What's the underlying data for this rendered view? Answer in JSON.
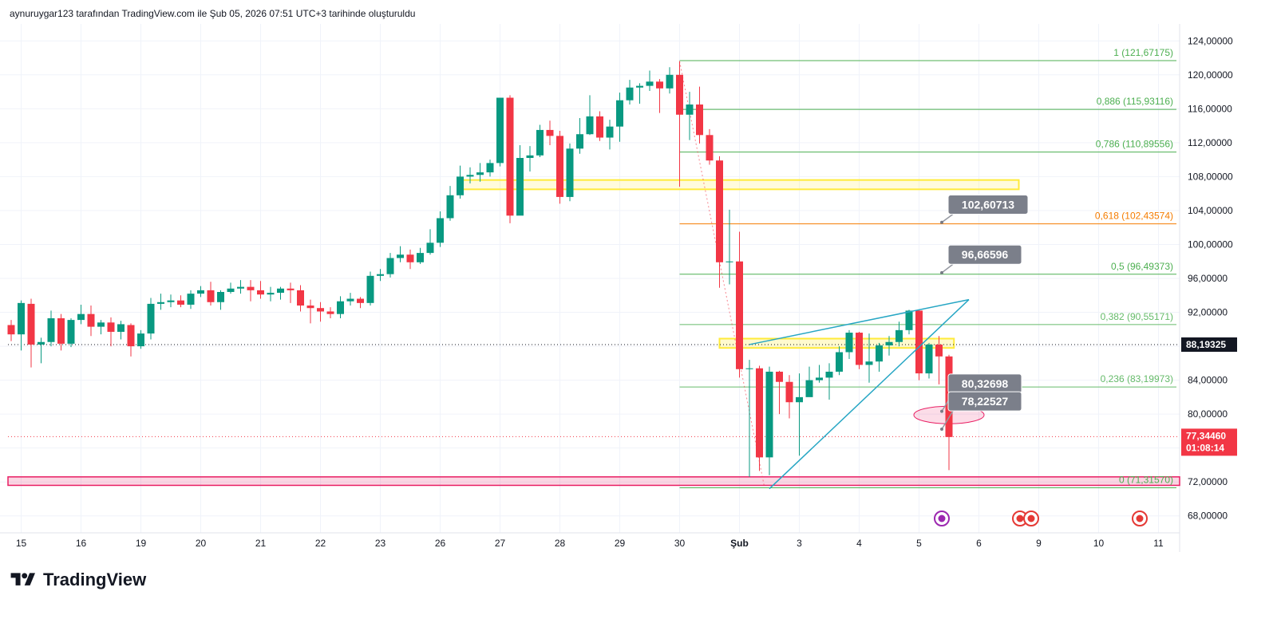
{
  "header": {
    "text": "aynuruygar123 tarafından TradingView.com ile Şub 05, 2026 07:51 UTC+3 tarihinde oluşturuldu"
  },
  "logo": {
    "text": "TradingView",
    "icon": "tradingview-logo-icon"
  },
  "colors": {
    "up": "#089981",
    "down": "#f23645",
    "grid": "#f0f3fa",
    "fib_green": "#4caf50",
    "fib_orange": "#f57c00",
    "fib_lightgreen": "#66bb6a",
    "trend": "#26a6c4",
    "zone_yellow": "#ffeb3b",
    "zone_pink": "#e91e63",
    "callout": "#7b7f8a",
    "price_tag": "#131722",
    "last_tag": "#f23645"
  },
  "chart_data": {
    "type": "candlestick",
    "ylim": [
      66,
      126
    ],
    "yticks": [
      "124,00000",
      "120,00000",
      "116,00000",
      "112,00000",
      "108,00000",
      "104,00000",
      "100,00000",
      "96,00000",
      "92,00000",
      "88,00000",
      "84,00000",
      "80,00000",
      "76,00000",
      "72,00000",
      "68,00000"
    ],
    "x_labels": [
      {
        "label": "15",
        "i": 1
      },
      {
        "label": "16",
        "i": 7
      },
      {
        "label": "19",
        "i": 13
      },
      {
        "label": "20",
        "i": 19
      },
      {
        "label": "21",
        "i": 25
      },
      {
        "label": "22",
        "i": 31
      },
      {
        "label": "23",
        "i": 37
      },
      {
        "label": "26",
        "i": 43
      },
      {
        "label": "27",
        "i": 49
      },
      {
        "label": "28",
        "i": 55
      },
      {
        "label": "29",
        "i": 61
      },
      {
        "label": "30",
        "i": 67
      },
      {
        "label": "Şub",
        "i": 73,
        "bold": true
      },
      {
        "label": "3",
        "i": 79
      },
      {
        "label": "4",
        "i": 85
      },
      {
        "label": "5",
        "i": 91
      },
      {
        "label": "6",
        "i": 97
      },
      {
        "label": "9",
        "i": 103
      },
      {
        "label": "11",
        "i": 115
      },
      {
        "label": "10",
        "i": 109
      }
    ],
    "candles": [
      [
        90.5,
        89.4,
        91.1,
        88.6
      ],
      [
        89.4,
        93.1,
        93.4,
        87.5
      ],
      [
        93.0,
        88.2,
        93.6,
        85.5
      ],
      [
        88.2,
        88.5,
        89.0,
        86.0
      ],
      [
        88.5,
        91.3,
        92.2,
        88.0
      ],
      [
        91.3,
        88.3,
        91.8,
        87.5
      ],
      [
        88.3,
        91.1,
        91.3,
        87.9
      ],
      [
        91.1,
        91.8,
        92.9,
        90.6
      ],
      [
        91.8,
        90.3,
        92.8,
        89.2
      ],
      [
        90.3,
        90.8,
        91.1,
        89.4
      ],
      [
        90.8,
        89.7,
        91.4,
        88.0
      ],
      [
        89.7,
        90.6,
        91.0,
        88.8
      ],
      [
        90.5,
        88.0,
        90.7,
        86.8
      ],
      [
        88.0,
        89.5,
        89.9,
        87.7
      ],
      [
        89.5,
        93.0,
        93.7,
        88.8
      ],
      [
        93.0,
        93.2,
        94.2,
        92.3
      ],
      [
        93.2,
        93.4,
        94.1,
        92.6
      ],
      [
        93.4,
        92.9,
        94.0,
        92.6
      ],
      [
        92.9,
        94.2,
        94.6,
        92.4
      ],
      [
        94.2,
        94.6,
        95.1,
        93.8
      ],
      [
        94.6,
        93.2,
        95.6,
        92.8
      ],
      [
        93.2,
        94.4,
        94.6,
        92.3
      ],
      [
        94.4,
        94.8,
        95.5,
        94.2
      ],
      [
        94.8,
        95.0,
        95.8,
        94.2
      ],
      [
        95.0,
        94.6,
        95.8,
        93.3
      ],
      [
        94.6,
        94.1,
        95.7,
        93.6
      ],
      [
        94.1,
        94.3,
        95.0,
        93.3
      ],
      [
        94.3,
        94.8,
        95.0,
        93.5
      ],
      [
        94.8,
        94.6,
        95.5,
        93.1
      ],
      [
        94.6,
        92.8,
        95.2,
        92.1
      ],
      [
        92.8,
        92.5,
        93.5,
        90.7
      ],
      [
        92.5,
        92.1,
        93.2,
        90.9
      ],
      [
        92.1,
        91.8,
        92.6,
        91.3
      ],
      [
        91.8,
        93.3,
        93.9,
        91.3
      ],
      [
        93.3,
        93.6,
        94.3,
        92.8
      ],
      [
        93.6,
        93.1,
        93.8,
        92.5
      ],
      [
        93.1,
        96.3,
        96.8,
        92.8
      ],
      [
        96.3,
        96.5,
        97.1,
        95.7
      ],
      [
        96.5,
        98.4,
        99.0,
        96.1
      ],
      [
        98.4,
        98.8,
        99.8,
        97.9
      ],
      [
        98.8,
        97.9,
        99.4,
        97.1
      ],
      [
        97.9,
        99.0,
        99.6,
        97.7
      ],
      [
        99.0,
        100.2,
        101.8,
        98.8
      ],
      [
        100.2,
        103.1,
        103.9,
        99.7
      ],
      [
        103.1,
        105.8,
        106.9,
        102.8
      ],
      [
        105.8,
        108.0,
        109.3,
        105.4
      ],
      [
        108.0,
        108.2,
        109.1,
        107.2
      ],
      [
        108.2,
        108.5,
        109.6,
        107.4
      ],
      [
        108.5,
        109.6,
        110.0,
        108.0
      ],
      [
        109.6,
        117.3,
        117.3,
        109.2
      ],
      [
        117.3,
        103.4,
        117.6,
        102.5
      ],
      [
        103.4,
        110.2,
        111.7,
        104.1
      ],
      [
        110.2,
        110.5,
        111.6,
        108.6
      ],
      [
        110.5,
        113.5,
        114.1,
        110.3
      ],
      [
        113.5,
        112.8,
        114.6,
        111.7
      ],
      [
        112.8,
        105.6,
        113.4,
        104.8
      ],
      [
        105.6,
        111.3,
        111.9,
        105.1
      ],
      [
        111.3,
        113.0,
        114.9,
        110.7
      ],
      [
        113.0,
        115.1,
        117.6,
        112.9
      ],
      [
        115.1,
        112.6,
        115.7,
        112.2
      ],
      [
        112.6,
        113.9,
        114.7,
        111.2
      ],
      [
        113.9,
        117.0,
        117.9,
        112.1
      ],
      [
        117.0,
        118.5,
        119.4,
        116.5
      ],
      [
        118.5,
        118.7,
        119.0,
        116.6
      ],
      [
        118.7,
        119.2,
        120.5,
        118.1
      ],
      [
        119.2,
        118.4,
        119.5,
        115.5
      ],
      [
        118.4,
        120.0,
        120.9,
        117.8
      ],
      [
        120.0,
        115.3,
        121.6,
        106.8
      ],
      [
        115.3,
        116.5,
        118.0,
        112.3
      ],
      [
        116.5,
        112.9,
        118.6,
        111.9
      ],
      [
        112.9,
        109.9,
        113.6,
        109.4
      ],
      [
        109.9,
        97.9,
        110.4,
        94.9
      ],
      [
        97.9,
        98.0,
        104.1,
        95.3
      ],
      [
        98.0,
        85.3,
        101.5,
        84.3
      ],
      [
        85.3,
        85.4,
        86.4,
        72.6
      ],
      [
        85.4,
        74.9,
        85.7,
        73.3
      ],
      [
        74.9,
        85.0,
        85.6,
        72.8
      ],
      [
        85.0,
        83.8,
        85.1,
        80.0
      ],
      [
        83.8,
        81.4,
        84.6,
        79.5
      ],
      [
        81.4,
        82.0,
        84.8,
        75.1
      ],
      [
        82.0,
        84.0,
        85.6,
        82.9
      ],
      [
        84.0,
        84.3,
        85.8,
        83.7
      ],
      [
        84.3,
        85.0,
        86.0,
        81.7
      ],
      [
        85.0,
        87.3,
        88.0,
        84.6
      ],
      [
        87.3,
        89.6,
        89.9,
        86.5
      ],
      [
        89.6,
        85.8,
        89.7,
        85.3
      ],
      [
        85.8,
        86.2,
        89.5,
        83.7
      ],
      [
        86.2,
        88.1,
        88.4,
        85.0
      ],
      [
        88.1,
        88.5,
        89.2,
        86.9
      ],
      [
        88.5,
        89.9,
        90.9,
        88.0
      ],
      [
        89.9,
        92.2,
        92.3,
        89.4
      ],
      [
        92.2,
        84.8,
        92.3,
        84.0
      ],
      [
        84.8,
        88.2,
        88.4,
        84.2
      ],
      [
        88.2,
        86.8,
        89.2,
        83.5
      ],
      [
        86.8,
        77.3,
        87.0,
        73.4
      ]
    ],
    "fib_levels": [
      {
        "label": "1 (121,67175)",
        "value": 121.67175,
        "color": "#4caf50"
      },
      {
        "label": "0,886 (115,93116)",
        "value": 115.93116,
        "color": "#4caf50"
      },
      {
        "label": "0,786 (110,89556)",
        "value": 110.89556,
        "color": "#4caf50"
      },
      {
        "label": "0,618 (102,43574)",
        "value": 102.43574,
        "color": "#f57c00"
      },
      {
        "label": "0,5 (96,49373)",
        "value": 96.49373,
        "color": "#4caf50"
      },
      {
        "label": "0,382 (90,55171)",
        "value": 90.55171,
        "color": "#66bb6a"
      },
      {
        "label": "0,236 (83,19973)",
        "value": 83.19973,
        "color": "#66bb6a"
      },
      {
        "label": "0 (71,31570)",
        "value": 71.3157,
        "color": "#4caf50"
      }
    ],
    "callouts": [
      {
        "label": "102,60713",
        "value": 102.60713
      },
      {
        "label": "96,66596",
        "value": 96.66596
      },
      {
        "label": "80,32698",
        "value": 80.32698
      },
      {
        "label": "78,22527",
        "value": 78.22527
      }
    ],
    "price_tag": {
      "label": "88,19325",
      "value": 88.19325
    },
    "last_price": {
      "label": "77,34460",
      "countdown": "01:08:14",
      "value": 77.3446
    }
  }
}
